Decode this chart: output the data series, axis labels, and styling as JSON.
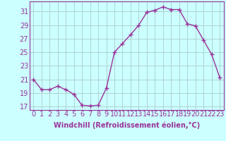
{
  "x": [
    0,
    1,
    2,
    3,
    4,
    5,
    6,
    7,
    8,
    9,
    10,
    11,
    12,
    13,
    14,
    15,
    16,
    17,
    18,
    19,
    20,
    21,
    22,
    23
  ],
  "y": [
    21.0,
    19.5,
    19.5,
    20.0,
    19.5,
    18.8,
    17.2,
    17.1,
    17.2,
    19.7,
    25.0,
    26.3,
    27.6,
    29.0,
    30.9,
    31.2,
    31.7,
    31.3,
    31.3,
    29.2,
    28.9,
    26.8,
    24.7,
    21.3
  ],
  "line_color": "#993399",
  "marker": "+",
  "marker_size": 4,
  "bg_color": "#ccffff",
  "grid_color": "#aacccc",
  "xlabel": "Windchill (Refroidissement éolien,°C)",
  "ylabel_ticks": [
    17,
    19,
    21,
    23,
    25,
    27,
    29,
    31
  ],
  "xlim": [
    -0.5,
    23.5
  ],
  "ylim": [
    16.5,
    32.5
  ],
  "xticks": [
    0,
    1,
    2,
    3,
    4,
    5,
    6,
    7,
    8,
    9,
    10,
    11,
    12,
    13,
    14,
    15,
    16,
    17,
    18,
    19,
    20,
    21,
    22,
    23
  ],
  "xlabel_fontsize": 7,
  "tick_fontsize": 7,
  "line_width": 1.0
}
